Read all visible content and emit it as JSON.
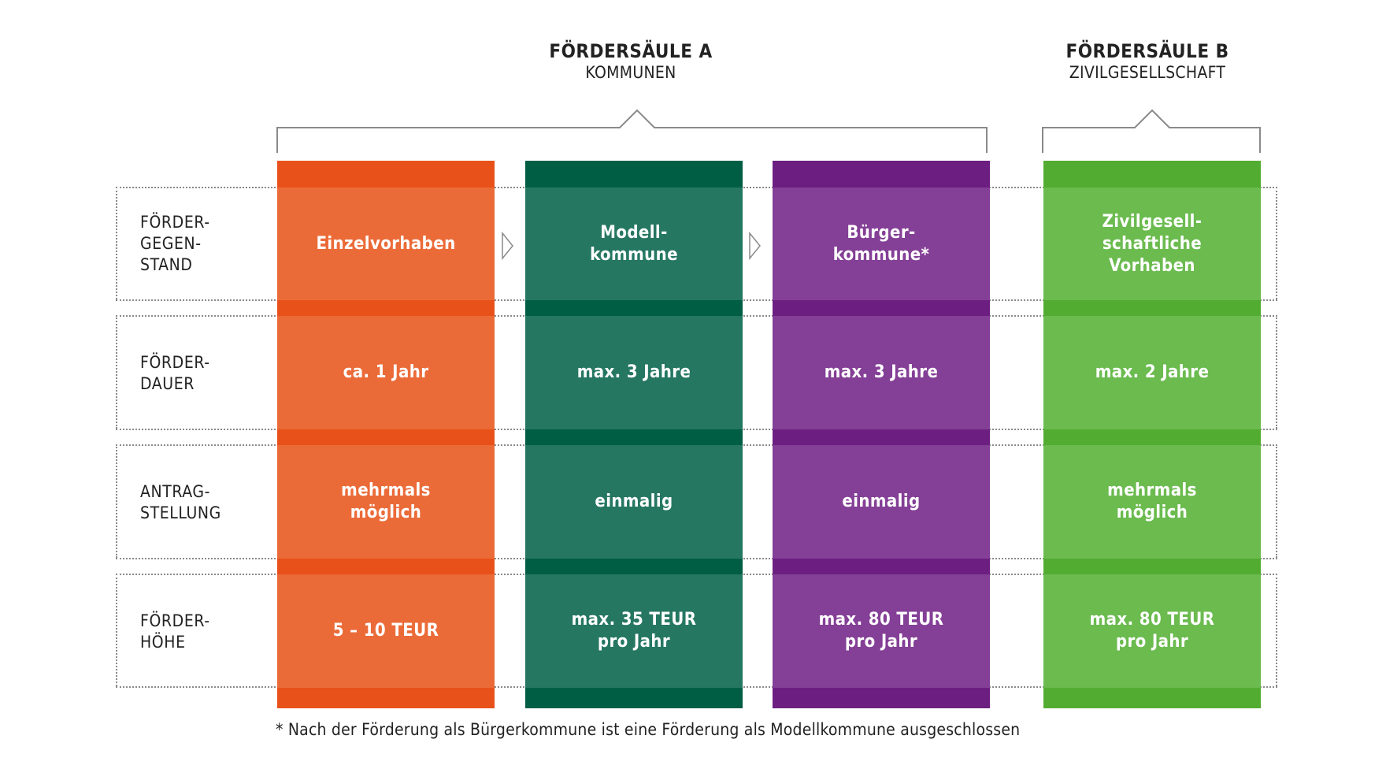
{
  "groups": [
    {
      "title": "FÖRDERSÄULE A",
      "subtitle": "KOMMUNEN"
    },
    {
      "title": "FÖRDERSÄULE B",
      "subtitle": "ZIVILGESELLSCHAFT"
    }
  ],
  "rows": [
    {
      "label": "FÖRDER-\nGEGEN-\nSTAND"
    },
    {
      "label": "FÖRDER-\nDAUER"
    },
    {
      "label": "ANTRAG-\nSTELLUNG"
    },
    {
      "label": "FÖRDER-\nHÖHE"
    }
  ],
  "columns": [
    {
      "name": "einzelvorhaben",
      "color_light": "#eb6b38",
      "color_dark": "#e85119",
      "cells": [
        "Einzelvorhaben",
        "ca. 1 Jahr",
        "mehrmals\nmöglich",
        "5 – 10 TEUR"
      ]
    },
    {
      "name": "modellkommune",
      "color_light": "#257762",
      "color_dark": "#005e45",
      "cells": [
        "Modell-\nkommune",
        "max. 3 Jahre",
        "einmalig",
        "max. 35 TEUR\npro Jahr"
      ]
    },
    {
      "name": "buergerkommune",
      "color_light": "#843f96",
      "color_dark": "#6c1f80",
      "cells": [
        "Bürger-\nkommune*",
        "max. 3 Jahre",
        "einmalig",
        "max. 80 TEUR\npro Jahr"
      ]
    },
    {
      "name": "zivilgesellschaft",
      "color_light": "#6bbb4f",
      "color_dark": "#52ac31",
      "cells": [
        "Zivilgesell-\nschaftliche\nVorhaben",
        "max. 2 Jahre",
        "mehrmals\nmöglich",
        "max. 80 TEUR\npro Jahr"
      ]
    }
  ],
  "footnote": "* Nach der Förderung als Bürgerkommune ist eine Förderung als Modellkommune ausgeschlossen"
}
